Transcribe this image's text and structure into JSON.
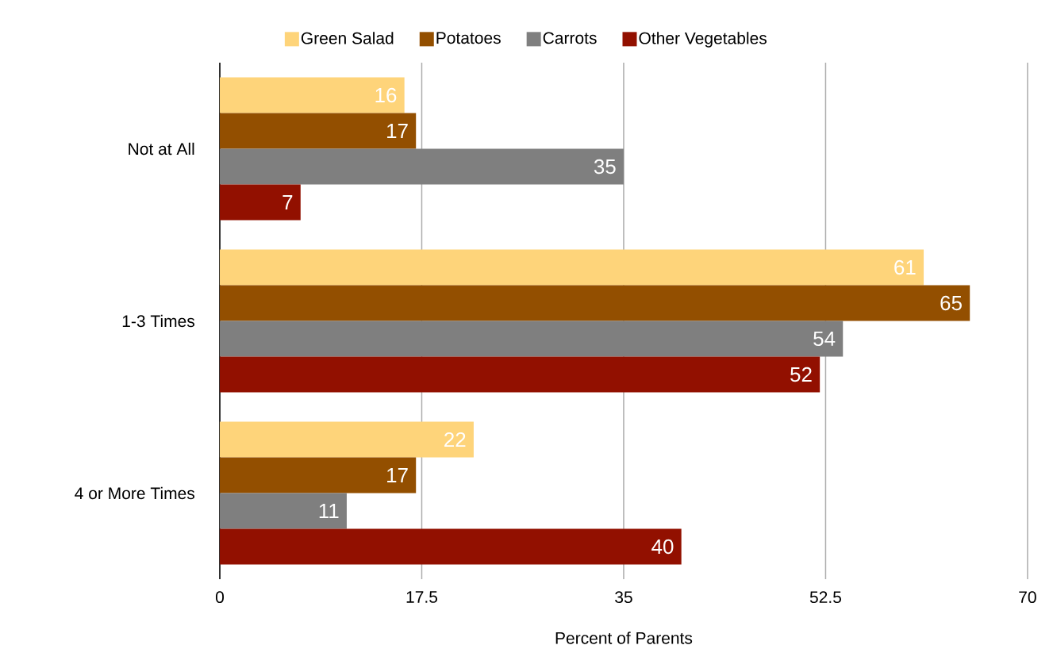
{
  "chart_data": {
    "type": "bar",
    "orientation": "horizontal",
    "xlabel": "Percent of Parents",
    "categories": [
      "Not at All",
      "1-3 Times",
      "4 or More Times"
    ],
    "series": [
      {
        "name": "Green Salad",
        "color": "#fed47a",
        "values": [
          16,
          61,
          22
        ]
      },
      {
        "name": "Potatoes",
        "color": "#934f00",
        "values": [
          17,
          65,
          17
        ]
      },
      {
        "name": "Carrots",
        "color": "#7f7f7f",
        "values": [
          35,
          54,
          11
        ]
      },
      {
        "name": "Other Vegetables",
        "color": "#921000",
        "values": [
          7,
          52,
          40
        ]
      }
    ],
    "xlim": [
      0,
      70
    ],
    "xticks": [
      0,
      17.5,
      35,
      52.5,
      70
    ],
    "grid": "x",
    "legend": "top",
    "data_labels": true
  }
}
